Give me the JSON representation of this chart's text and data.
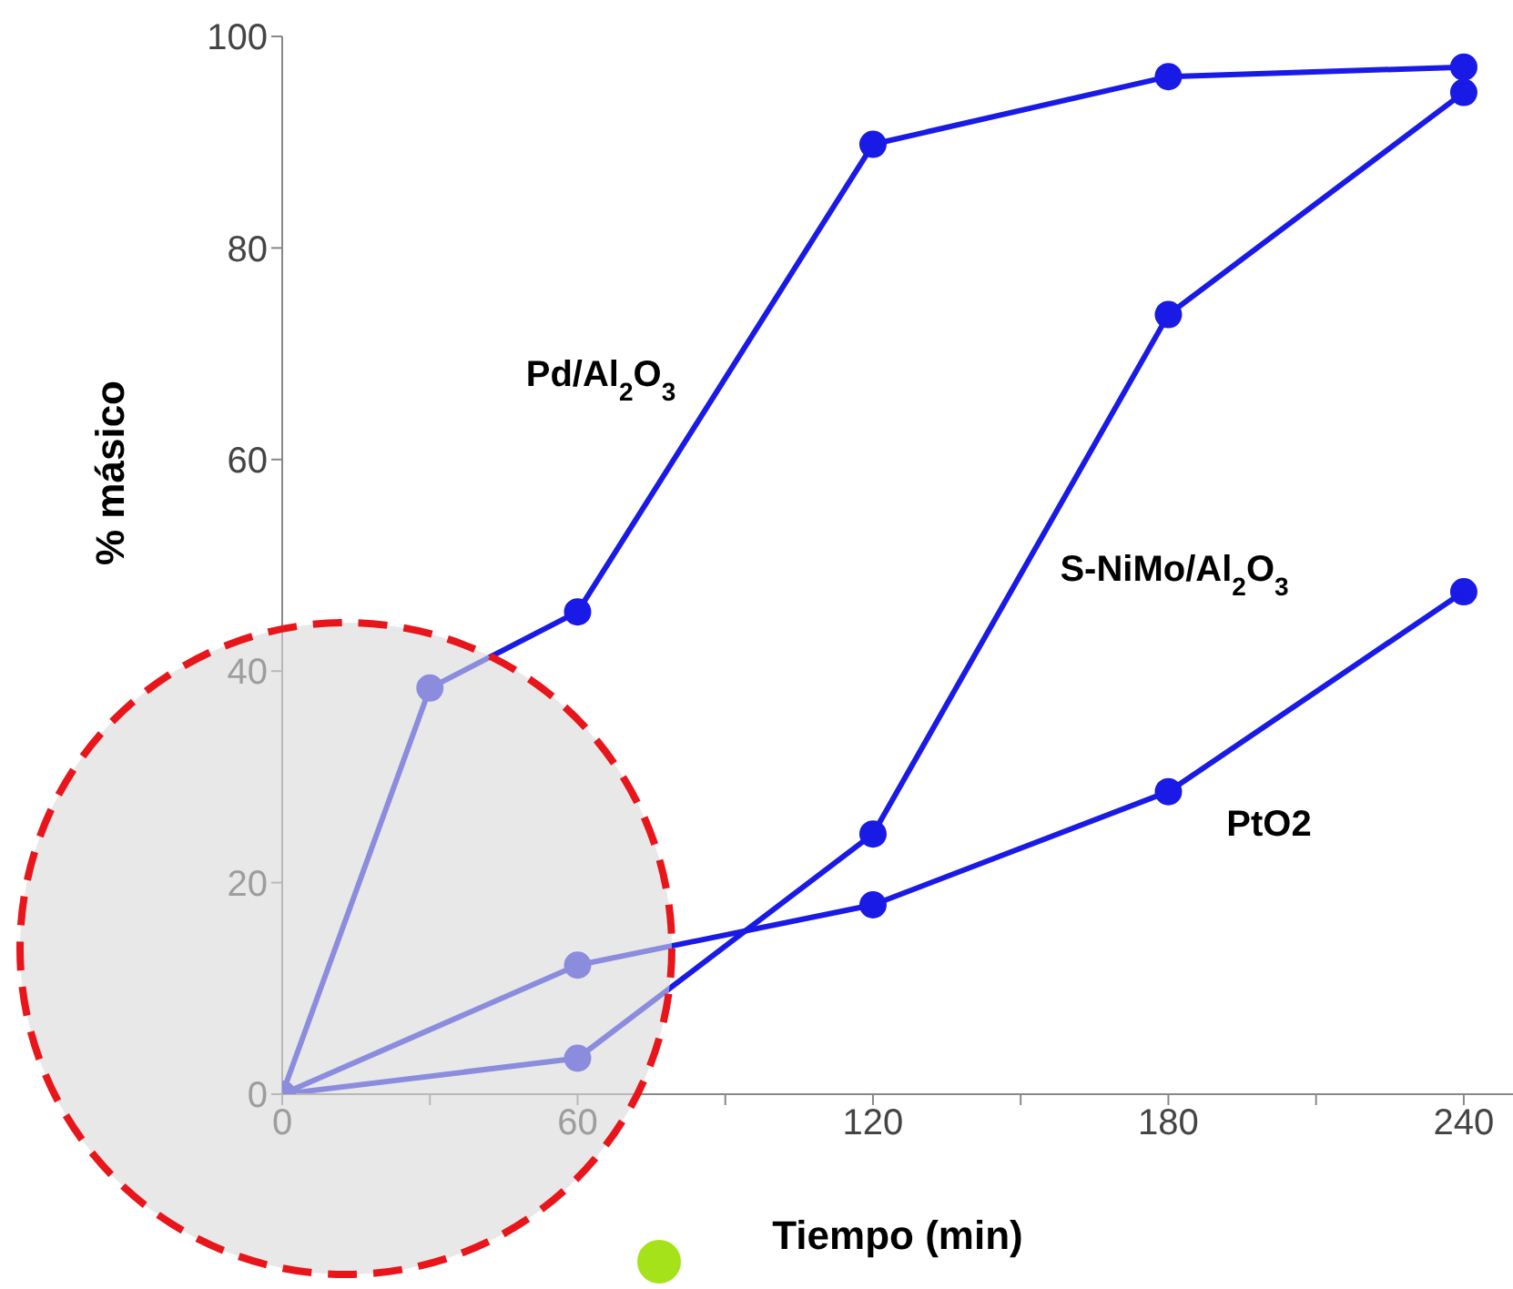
{
  "chart_data": {
    "type": "line",
    "xlabel": "Tiempo (min)",
    "ylabel": "% másico",
    "xlim": [
      0,
      250
    ],
    "xticks": [
      0,
      {
        "value": 30,
        "label": null
      },
      60,
      {
        "value": 90,
        "label": null
      },
      120,
      {
        "value": 150,
        "label": null
      },
      180,
      {
        "value": 210,
        "label": null
      },
      240
    ],
    "ylim": [
      0,
      100
    ],
    "yticks": [
      0,
      20,
      40,
      60,
      80,
      100
    ],
    "marker": "circle",
    "line_style": "solid",
    "grid": false,
    "series": [
      {
        "name": "Pd/Al$_{2}$O$_{3}$",
        "color": "#1a1ae6",
        "x": [
          0,
          30,
          60,
          120,
          180,
          240
        ],
        "values": [
          0,
          38.4,
          45.6,
          89.8,
          96.2,
          97.1
        ]
      },
      {
        "name": "S-NiMo/Al$_{2}$O$_{3}$",
        "color": "#1a1ae6",
        "x": [
          0,
          60,
          120,
          180,
          240
        ],
        "values": [
          0,
          3.4,
          24.6,
          73.7,
          94.7
        ]
      },
      {
        "name": "PtO2",
        "color": "#1a1ae6",
        "x": [
          0,
          60,
          120,
          180,
          240
        ],
        "values": [
          0,
          12.2,
          17.9,
          28.6,
          47.5
        ]
      }
    ]
  }
}
